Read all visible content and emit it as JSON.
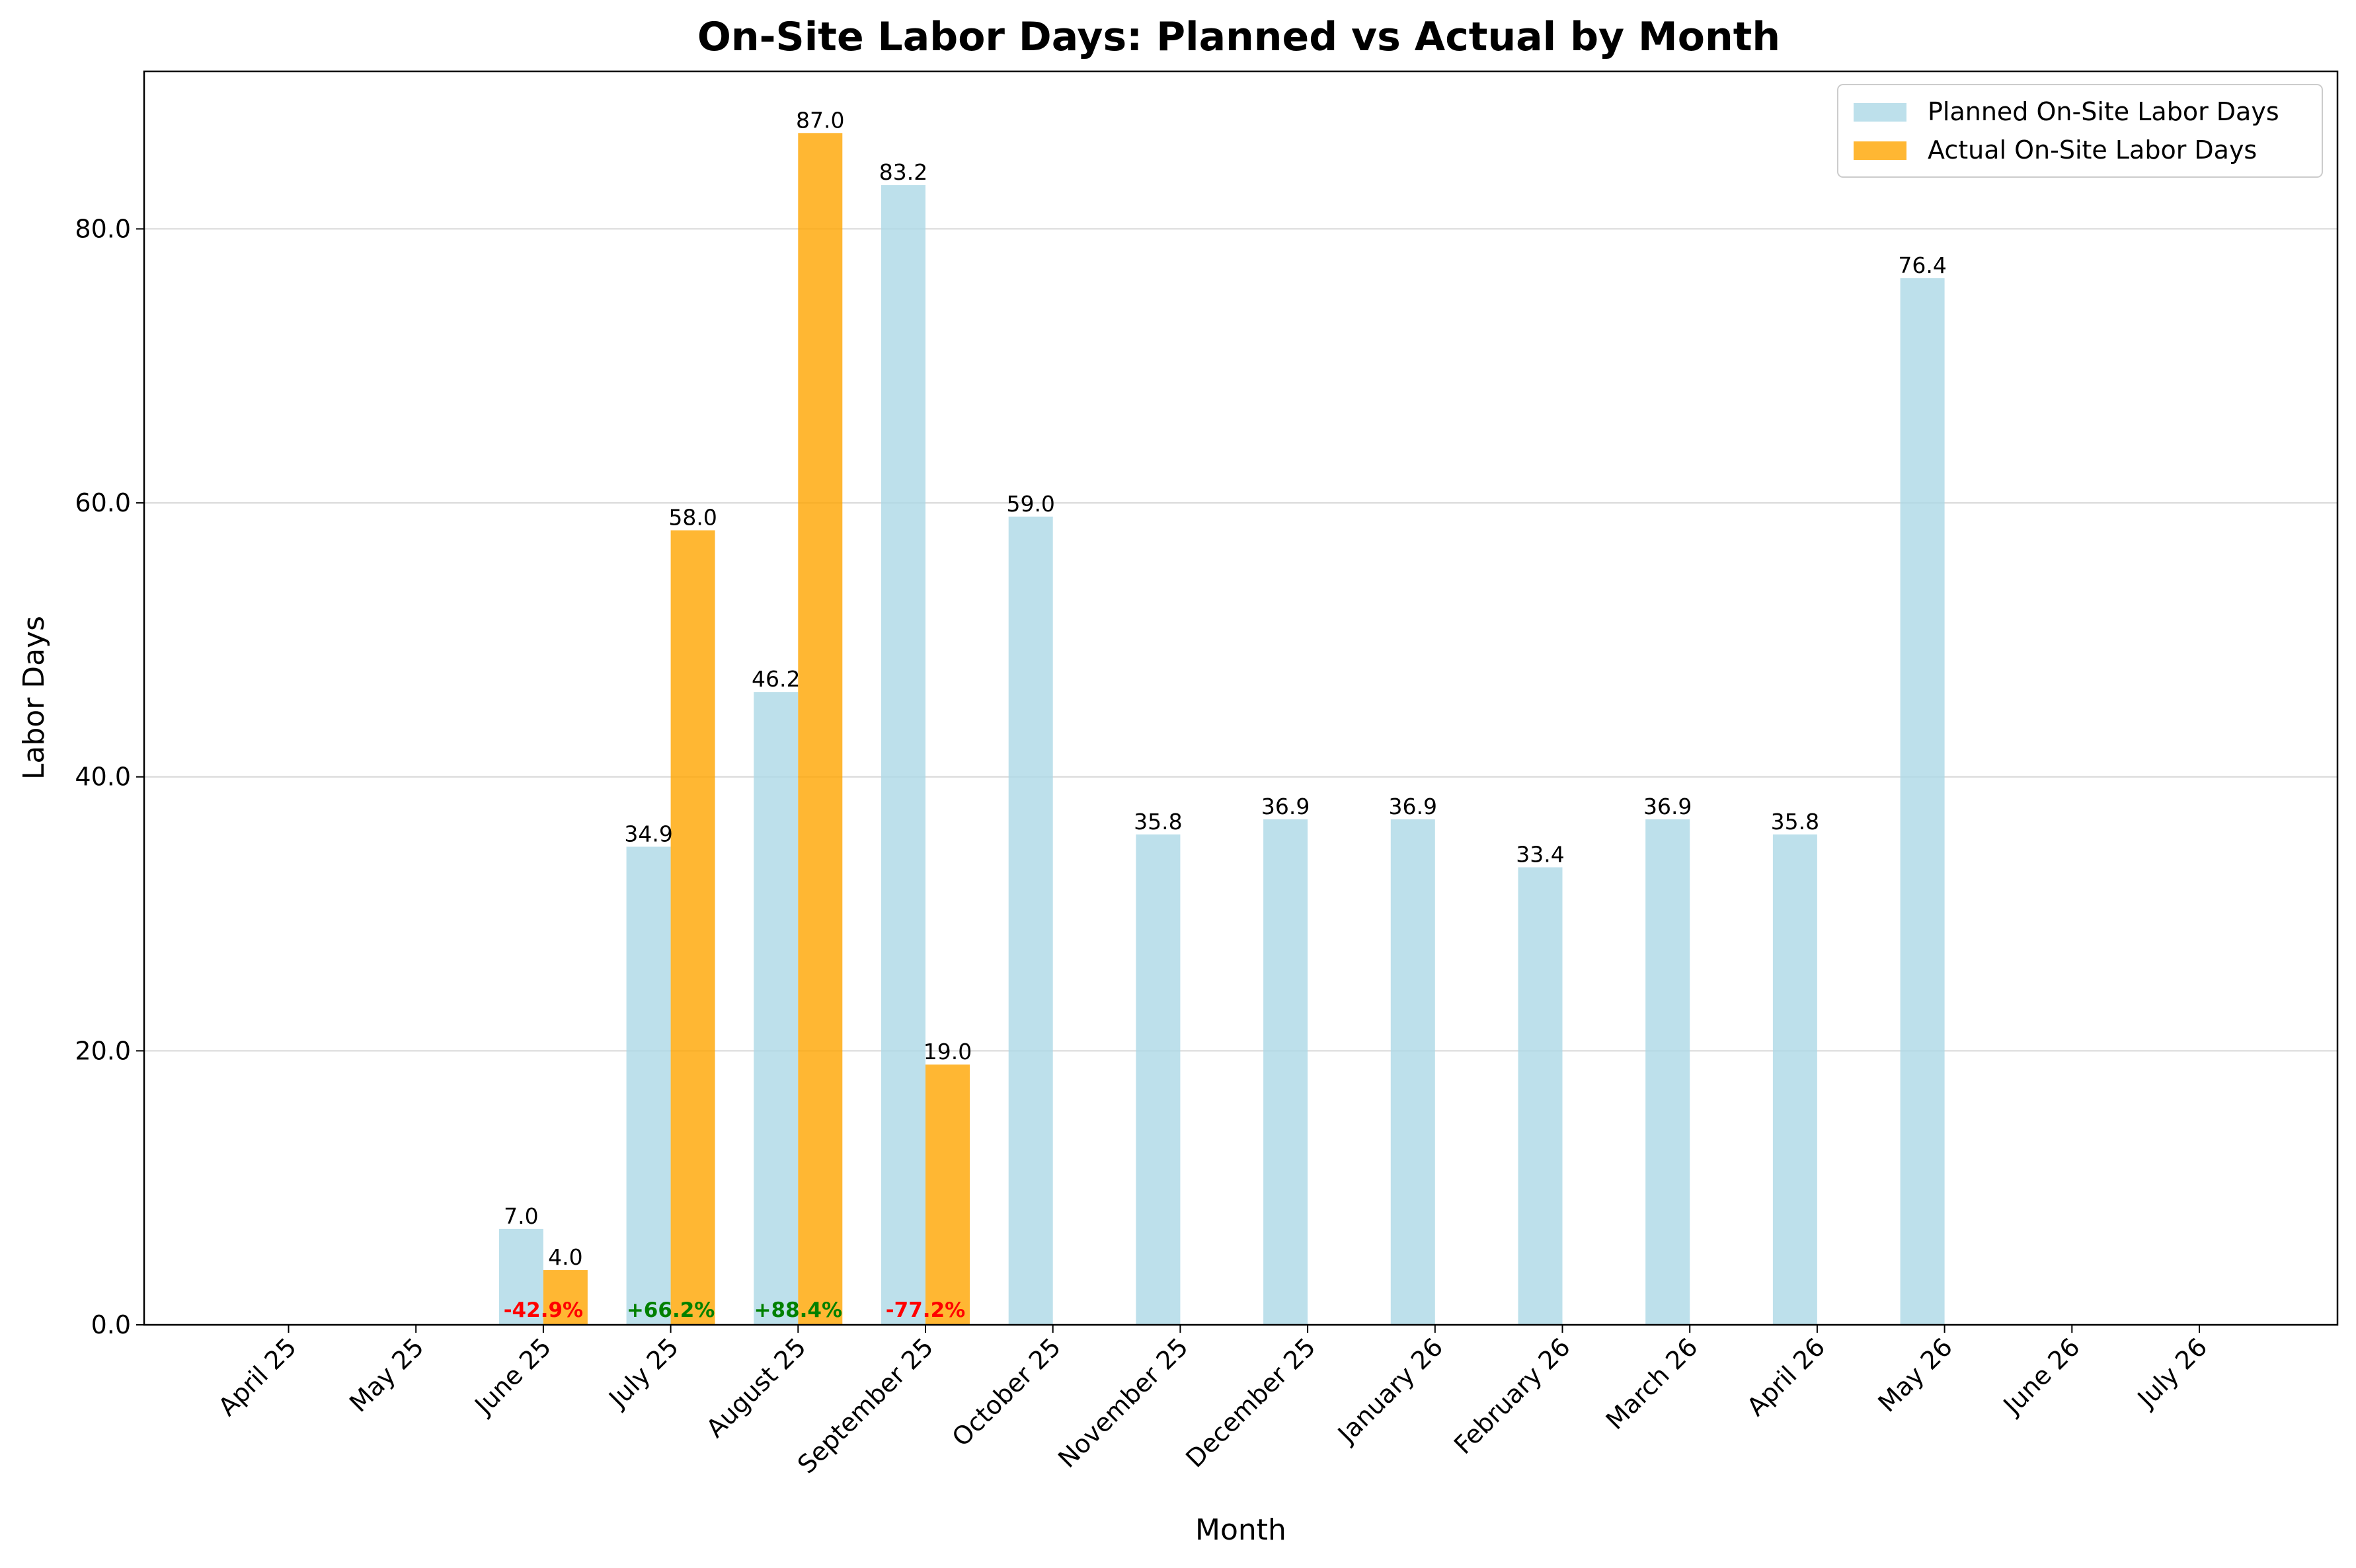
{
  "chart_data": {
    "type": "bar",
    "title": "On-Site Labor Days: Planned vs Actual by Month",
    "xlabel": "Month",
    "ylabel": "Labor Days",
    "ylim": [
      0,
      91.5
    ],
    "yticks": [
      "0.0",
      "20.0",
      "40.0",
      "60.0",
      "80.0"
    ],
    "grid": "y-axis, light",
    "legend_position": "top-right",
    "categories": [
      "April 25",
      "May 25",
      "June 25",
      "July 25",
      "August 25",
      "September 25",
      "October 25",
      "November 25",
      "December 25",
      "January 26",
      "February 26",
      "March 26",
      "April 26",
      "May 26",
      "June 26",
      "July 26"
    ],
    "series": [
      {
        "name": "Planned On-Site Labor Days",
        "color": "#add8e6",
        "values": [
          null,
          null,
          7.0,
          34.9,
          46.2,
          83.2,
          59.0,
          35.8,
          36.9,
          36.9,
          33.4,
          36.9,
          35.8,
          76.4,
          null,
          null
        ],
        "labels": [
          "",
          "",
          "7.0",
          "34.9",
          "46.2",
          "83.2",
          "59.0",
          "35.8",
          "36.9",
          "36.9",
          "33.4",
          "36.9",
          "35.8",
          "76.4",
          "",
          ""
        ]
      },
      {
        "name": "Actual On-Site Labor Days",
        "color": "#ffa500",
        "values": [
          null,
          null,
          4.0,
          58.0,
          87.0,
          19.0,
          null,
          null,
          null,
          null,
          null,
          null,
          null,
          null,
          null,
          null
        ],
        "labels": [
          "",
          "",
          "4.0",
          "58.0",
          "87.0",
          "19.0",
          "",
          "",
          "",
          "",
          "",
          "",
          "",
          "",
          "",
          ""
        ]
      }
    ],
    "variance_labels": [
      "",
      "",
      "-42.9%",
      "+66.2%",
      "+88.4%",
      "-77.2%",
      "",
      "",
      "",
      "",
      "",
      "",
      "",
      "",
      "",
      ""
    ],
    "variance_colors": {
      "positive": "#008000",
      "negative": "#ff0000"
    }
  }
}
